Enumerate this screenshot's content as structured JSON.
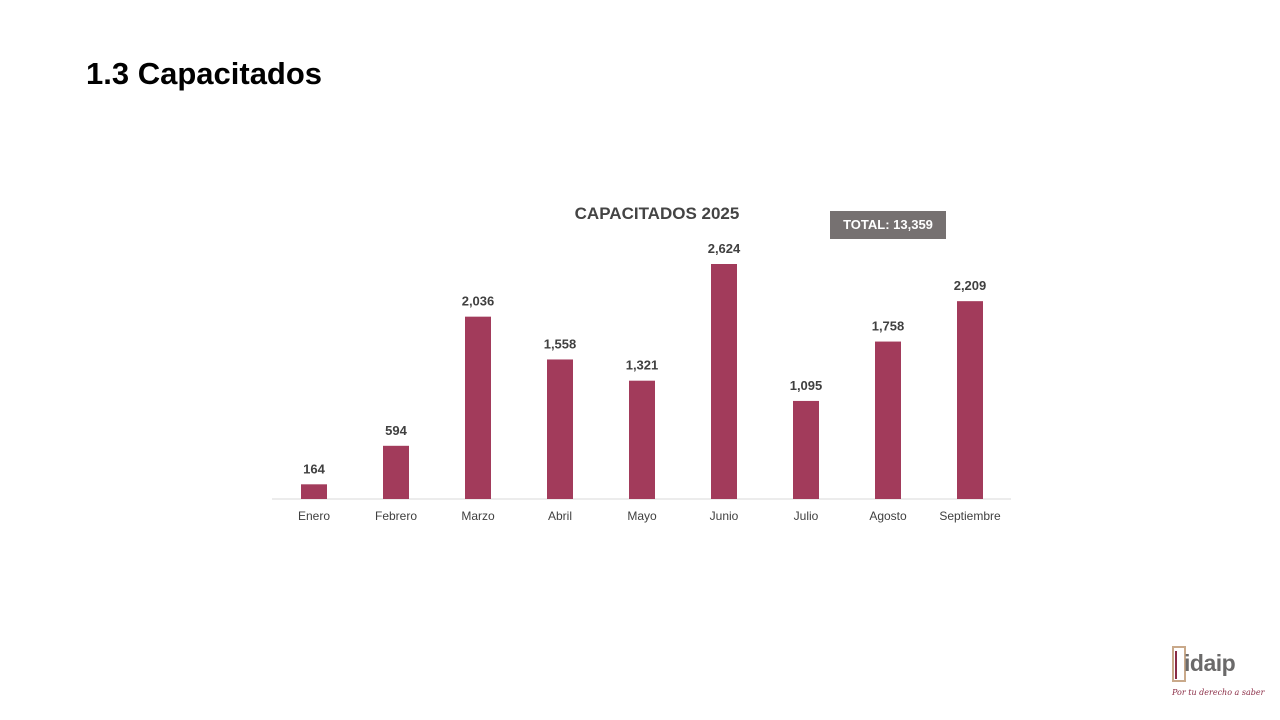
{
  "slide": {
    "title": "1.3 Capacitados"
  },
  "badge": {
    "total": "TOTAL: 13,359"
  },
  "logo": {
    "name": "idaip",
    "tagline": "Por tu derecho a saber"
  },
  "colors": {
    "bar": "#A23B5B",
    "axis": "#D9D9D9",
    "label": "#404040",
    "badge_bg": "#767171"
  },
  "chart_data": {
    "type": "bar",
    "title": "CAPACITADOS 2025",
    "categories": [
      "Enero",
      "Febrero",
      "Marzo",
      "Abril",
      "Mayo",
      "Junio",
      "Julio",
      "Agosto",
      "Septiembre"
    ],
    "values": [
      164,
      594,
      2036,
      1558,
      1321,
      2624,
      1095,
      1758,
      2209
    ],
    "data_labels": [
      "164",
      "594",
      "2,036",
      "1,558",
      "1,321",
      "2,624",
      "1,095",
      "1,758",
      "2,209"
    ],
    "xlabel": "",
    "ylabel": "",
    "ylim": [
      0,
      2624
    ],
    "grid": false,
    "legend": "none"
  }
}
